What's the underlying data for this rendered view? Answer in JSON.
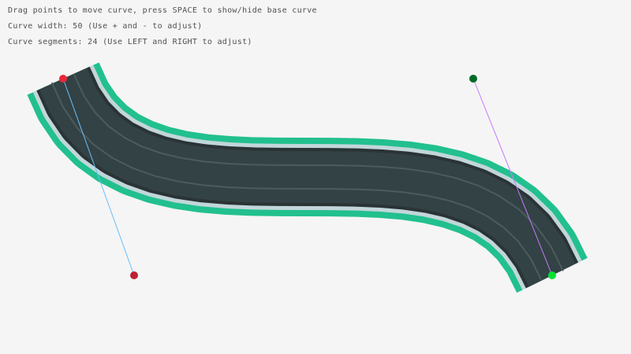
{
  "instructions": [
    "Drag points to move curve, press SPACE to show/hide base curve",
    "Curve width: 50 (Use + and - to adjust)",
    "Curve segments: 24 (Use LEFT and RIGHT to adjust)"
  ],
  "curve": {
    "width": 50,
    "segments": 24,
    "start_point": [
      80,
      100
    ],
    "start_control": [
      170,
      350
    ],
    "end_control": [
      600,
      100
    ],
    "end_point": [
      700,
      350
    ]
  },
  "colors": {
    "background": "#f5f5f5",
    "border_outer": "#22c08e",
    "border_inner": "#c2d6da",
    "road_edge": "#2a3335",
    "road": "#334244",
    "lane_line": "#4c5c5e",
    "start_point": "#e62937",
    "start_control": "#be2133",
    "end_control": "#006b24",
    "end_point": "#00e430",
    "start_line": "#66bfff",
    "end_line": "#c87aff"
  }
}
